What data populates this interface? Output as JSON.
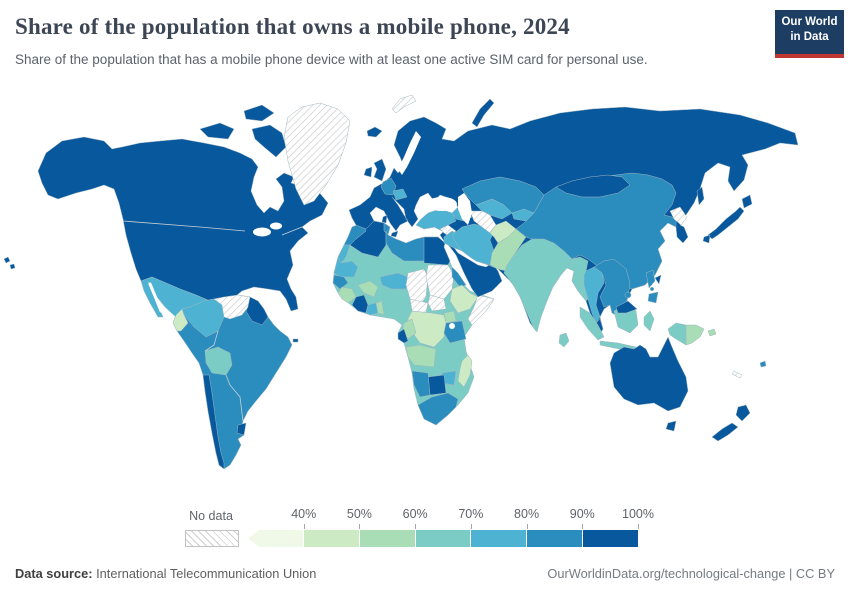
{
  "header": {
    "title": "Share of the population that owns a mobile phone, 2024",
    "subtitle": "Share of the population that has a mobile phone device with at least one active SIM card for personal use.",
    "logo": {
      "line1": "Our World",
      "line2": "in Data",
      "bg_color": "#1d3d63",
      "accent_color": "#bf3633"
    }
  },
  "legend": {
    "no_data_label": "No data",
    "tick_labels": [
      "40%",
      "50%",
      "60%",
      "70%",
      "80%",
      "90%",
      "100%"
    ],
    "bins": [
      {
        "label": "<40%",
        "color": "#f0f9e8"
      },
      {
        "label": "40-50%",
        "color": "#ccebc5"
      },
      {
        "label": "50-60%",
        "color": "#a8ddb5"
      },
      {
        "label": "60-70%",
        "color": "#7bccc4"
      },
      {
        "label": "70-80%",
        "color": "#4eb3d3"
      },
      {
        "label": "80-90%",
        "color": "#2b8cbe"
      },
      {
        "label": "90-100%",
        "color": "#08589e"
      }
    ]
  },
  "footer": {
    "source_label": "Data source:",
    "source": "International Telecommunication Union",
    "credit": "OurWorldinData.org/technological-change | CC BY"
  },
  "map": {
    "water_color": "#ffffff",
    "no_data_pattern_color": "#cfcfcf"
  },
  "chart_data": {
    "type": "choropleth",
    "title": "Share of the population that owns a mobile phone",
    "year": "2024",
    "unit": "% of population",
    "legend_position": "bottom",
    "palette": {
      "<40%": "#f0f9e8",
      "40-50%": "#ccebc5",
      "50-60%": "#a8ddb5",
      "60-70%": "#7bccc4",
      "70-80%": "#4eb3d3",
      "80-90%": "#2b8cbe",
      "90-100%": "#08589e"
    },
    "regions": {
      "canada-united-states": {
        "name": "Canada & United States",
        "band": "90-100%"
      },
      "greenland": {
        "name": "Greenland",
        "band": "No data"
      },
      "iceland": {
        "name": "Iceland",
        "band": "90-100%"
      },
      "united-kingdom-ireland": {
        "name": "United Kingdom & Ireland",
        "band": "90-100%"
      },
      "mexico": {
        "name": "Mexico",
        "band": "70-80%"
      },
      "central-america": {
        "name": "Guatemala, Honduras, Nicaragua",
        "band": "60-70%"
      },
      "costa-rica": {
        "name": "Costa Rica",
        "band": "90-100%"
      },
      "panama": {
        "name": "Panama",
        "band": "80-90%"
      },
      "cuba": {
        "name": "Cuba",
        "band": "80-90%"
      },
      "jamaica": {
        "name": "Jamaica",
        "band": "60-70%"
      },
      "haiti": {
        "name": "Haiti",
        "band": "<40%"
      },
      "dominican-republic": {
        "name": "Dominican Republic",
        "band": "90-100%"
      },
      "puerto-rico": {
        "name": "Puerto Rico",
        "band": "90-100%"
      },
      "colombia": {
        "name": "Colombia",
        "band": "70-80%"
      },
      "venezuela": {
        "name": "Venezuela",
        "band": "No data"
      },
      "guyanas": {
        "name": "Guyana & Suriname",
        "band": "90-100%"
      },
      "ecuador": {
        "name": "Ecuador",
        "band": "40-50%"
      },
      "brazil-argentina-peru-paraguay": {
        "name": "Brazil, Argentina, Peru, Paraguay",
        "band": "80-90%"
      },
      "bolivia": {
        "name": "Bolivia",
        "band": "60-70%"
      },
      "chile": {
        "name": "Chile",
        "band": "90-100%"
      },
      "uruguay": {
        "name": "Uruguay",
        "band": "90-100%"
      },
      "europe-russia-arabia": {
        "name": "Europe, Russia, Arabian Peninsula, South Korea",
        "band": "90-100%"
      },
      "svalbard": {
        "name": "Svalbard",
        "band": "No data"
      },
      "germany": {
        "name": "Germany",
        "band": "80-90%"
      },
      "austria-czechia": {
        "name": "Austria & Czechia",
        "band": "70-80%"
      },
      "turkey": {
        "name": "Turkey",
        "band": "70-80%"
      },
      "syria": {
        "name": "Syria",
        "band": "No data"
      },
      "iraq": {
        "name": "Iraq",
        "band": "70-80%"
      },
      "iran": {
        "name": "Iran",
        "band": "70-80%"
      },
      "caucasus": {
        "name": "Georgia, Armenia, Azerbaijan",
        "band": "70-80%"
      },
      "kazakhstan": {
        "name": "Kazakhstan",
        "band": "80-90%"
      },
      "turkmenistan": {
        "name": "Turkmenistan",
        "band": "No data"
      },
      "uzbekistan": {
        "name": "Uzbekistan",
        "band": "70-80%"
      },
      "kyrgyzstan-tajikistan": {
        "name": "Kyrgyzstan & Tajikistan",
        "band": "70-80%"
      },
      "afghanistan": {
        "name": "Afghanistan",
        "band": "40-50%"
      },
      "pakistan": {
        "name": "Pakistan",
        "band": "50-60%"
      },
      "india": {
        "name": "India",
        "band": "60-70%"
      },
      "sri-lanka": {
        "name": "Sri Lanka",
        "band": "60-70%"
      },
      "china": {
        "name": "China",
        "band": "80-90%"
      },
      "mongolia": {
        "name": "Mongolia",
        "band": "90-100%"
      },
      "north-korea": {
        "name": "North Korea",
        "band": "No data"
      },
      "japan": {
        "name": "Japan",
        "band": "90-100%"
      },
      "taiwan": {
        "name": "Taiwan",
        "band": "90-100%"
      },
      "myanmar": {
        "name": "Myanmar",
        "band": "60-70%"
      },
      "thailand": {
        "name": "Thailand",
        "band": "70-80%"
      },
      "vietnam-laos-cambodia": {
        "name": "Vietnam, Laos, Cambodia",
        "band": "80-90%"
      },
      "malaysia": {
        "name": "Malaysia",
        "band": "90-100%"
      },
      "philippines": {
        "name": "Philippines",
        "band": "80-90%"
      },
      "indonesia": {
        "name": "Indonesia",
        "band": "60-70%"
      },
      "papua-new-guinea": {
        "name": "Papua New Guinea",
        "band": "50-60%"
      },
      "fiji": {
        "name": "Fiji",
        "band": "80-90%"
      },
      "new-caledonia": {
        "name": "New Caledonia",
        "band": "No data"
      },
      "australia": {
        "name": "Australia",
        "band": "90-100%"
      },
      "new-zealand": {
        "name": "New Zealand",
        "band": "90-100%"
      },
      "morocco": {
        "name": "Morocco",
        "band": "80-90%"
      },
      "western-sahara": {
        "name": "Western Sahara",
        "band": "70-80%"
      },
      "algeria": {
        "name": "Algeria",
        "band": "90-100%"
      },
      "tunisia": {
        "name": "Tunisia",
        "band": "80-90%"
      },
      "libya": {
        "name": "Libya",
        "band": "80-90%"
      },
      "egypt": {
        "name": "Egypt",
        "band": "90-100%"
      },
      "mauritania": {
        "name": "Mauritania",
        "band": "70-80%"
      },
      "senegal": {
        "name": "Senegal",
        "band": "80-90%"
      },
      "guinea-sierra-leone": {
        "name": "Guinea & Sierra Leone",
        "band": "50-60%"
      },
      "cote-divoire": {
        "name": "Côte d'Ivoire",
        "band": "90-100%"
      },
      "ghana": {
        "name": "Ghana",
        "band": "70-80%"
      },
      "togo-benin": {
        "name": "Togo & Benin",
        "band": "50-60%"
      },
      "burkina-faso": {
        "name": "Burkina Faso",
        "band": "50-60%"
      },
      "niger": {
        "name": "Niger",
        "band": "70-80%"
      },
      "mali-nigeria-kenya-zambia": {
        "name": "Mali, Nigeria, Cameroon, Kenya, Zambia, Mozambique",
        "band": "60-70%"
      },
      "chad": {
        "name": "Chad",
        "band": "No data"
      },
      "sudan": {
        "name": "Sudan",
        "band": "No data"
      },
      "south-sudan": {
        "name": "South Sudan",
        "band": "No data"
      },
      "central-african-republic": {
        "name": "Central African Republic",
        "band": "No data"
      },
      "eritrea": {
        "name": "Eritrea & Djibouti",
        "band": "80-90%"
      },
      "ethiopia": {
        "name": "Ethiopia",
        "band": "40-50%"
      },
      "somalia": {
        "name": "Somalia",
        "band": "No data"
      },
      "uganda": {
        "name": "Uganda",
        "band": "50-60%"
      },
      "drc": {
        "name": "Democratic Republic of Congo",
        "band": "40-50%"
      },
      "congo": {
        "name": "Congo",
        "band": "50-60%"
      },
      "gabon": {
        "name": "Gabon",
        "band": "90-100%"
      },
      "angola": {
        "name": "Angola",
        "band": "50-60%"
      },
      "tanzania": {
        "name": "Tanzania",
        "band": "80-90%"
      },
      "zimbabwe": {
        "name": "Zimbabwe",
        "band": "70-80%"
      },
      "botswana": {
        "name": "Botswana",
        "band": "90-100%"
      },
      "namibia": {
        "name": "Namibia",
        "band": "80-90%"
      },
      "south-africa": {
        "name": "South Africa",
        "band": "80-90%"
      },
      "madagascar": {
        "name": "Madagascar",
        "band": "40-50%"
      }
    }
  }
}
